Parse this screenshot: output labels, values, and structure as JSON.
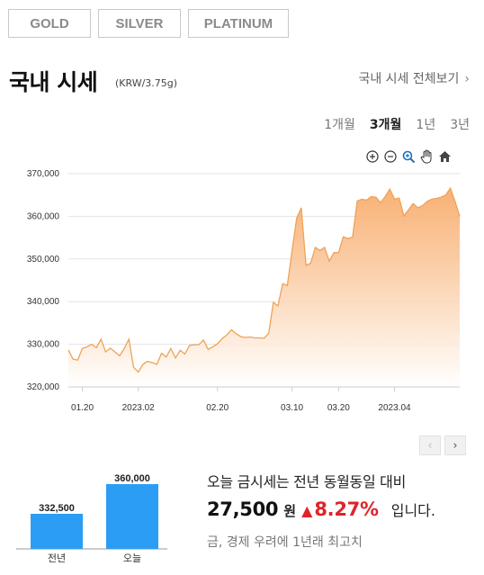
{
  "tabs": [
    {
      "label": "GOLD",
      "active": true
    },
    {
      "label": "SILVER",
      "active": false
    },
    {
      "label": "PLATINUM",
      "active": false
    }
  ],
  "header": {
    "title": "국내 시세",
    "unit": "(KRW/3.75g)",
    "view_all": "국내 시세 전체보기",
    "view_all_icon": "chevron-right-icon"
  },
  "periods": [
    {
      "label": "1개월",
      "active": false
    },
    {
      "label": "3개월",
      "active": true
    },
    {
      "label": "1년",
      "active": false
    },
    {
      "label": "3년",
      "active": false
    }
  ],
  "toolbar": [
    "zoom-in-icon",
    "zoom-out-icon",
    "magnify-icon",
    "pan-hand-icon",
    "home-icon"
  ],
  "colors": {
    "accent": "#ea7a2b",
    "line": "#f0a257",
    "fill_top": "#f7a35c",
    "bar": "#2b9df4",
    "up": "#e0232b"
  },
  "chart_data": [
    {
      "type": "area",
      "title": "",
      "xlabel": "",
      "ylabel": "",
      "ylim": [
        320000,
        370000
      ],
      "yticks": [
        "320,000",
        "330,000",
        "340,000",
        "350,000",
        "360,000",
        "370,000"
      ],
      "xticks": [
        {
          "label": "01.20",
          "x": 3
        },
        {
          "label": "2023.02",
          "x": 15
        },
        {
          "label": "02.20",
          "x": 32
        },
        {
          "label": "03.10",
          "x": 48
        },
        {
          "label": "03.20",
          "x": 58
        },
        {
          "label": "2023.04",
          "x": 70
        }
      ],
      "grid": true,
      "x": [
        0,
        1,
        2,
        3,
        4,
        5,
        6,
        7,
        8,
        9,
        10,
        11,
        12,
        13,
        14,
        15,
        16,
        17,
        18,
        19,
        20,
        21,
        22,
        23,
        24,
        25,
        26,
        27,
        28,
        29,
        30,
        31,
        32,
        33,
        34,
        35,
        36,
        37,
        38,
        39,
        40,
        41,
        42,
        43,
        44,
        45,
        46,
        47,
        48,
        49,
        50,
        51,
        52,
        53,
        54,
        55,
        56,
        57,
        58,
        59,
        60,
        61,
        62,
        63,
        64,
        65,
        66,
        67,
        68,
        69,
        70,
        71,
        72,
        73,
        74,
        75,
        76,
        77,
        78,
        79,
        80,
        81,
        82,
        83,
        84
      ],
      "values": [
        328700,
        326500,
        326300,
        329000,
        329400,
        330000,
        329200,
        331200,
        328200,
        329100,
        328200,
        327300,
        329000,
        331200,
        324600,
        323500,
        325300,
        326000,
        325700,
        325300,
        327900,
        327000,
        329000,
        326800,
        328600,
        327700,
        329700,
        329900,
        329900,
        331000,
        328800,
        329400,
        330100,
        331300,
        332200,
        333400,
        332500,
        331800,
        331600,
        331700,
        331500,
        331500,
        331400,
        332600,
        339800,
        339000,
        344200,
        343800,
        351900,
        359600,
        362000,
        348500,
        349000,
        352700,
        352000,
        352700,
        349500,
        351500,
        351500,
        355200,
        354800,
        355100,
        363600,
        364000,
        363800,
        364600,
        364500,
        363200,
        364600,
        366400,
        364000,
        364300,
        360100,
        361500,
        363000,
        362000,
        362500,
        363500,
        364000,
        364200,
        364500,
        365000,
        366600,
        363500,
        360000
      ]
    },
    {
      "type": "bar",
      "categories": [
        "전년",
        "오늘"
      ],
      "values": [
        332500,
        360000
      ],
      "value_labels": [
        "332,500",
        "360,000"
      ]
    }
  ],
  "summary": {
    "line1": "오늘 금시세는 전년 동월동일 대비",
    "diff": "27,500",
    "won": "원",
    "arrow": "▲",
    "pct": "8.27%",
    "suffix": "입니다.",
    "note": "금, 경제 우려에 1년래 최고치"
  },
  "nav": {
    "prev": "‹",
    "next": "›"
  }
}
